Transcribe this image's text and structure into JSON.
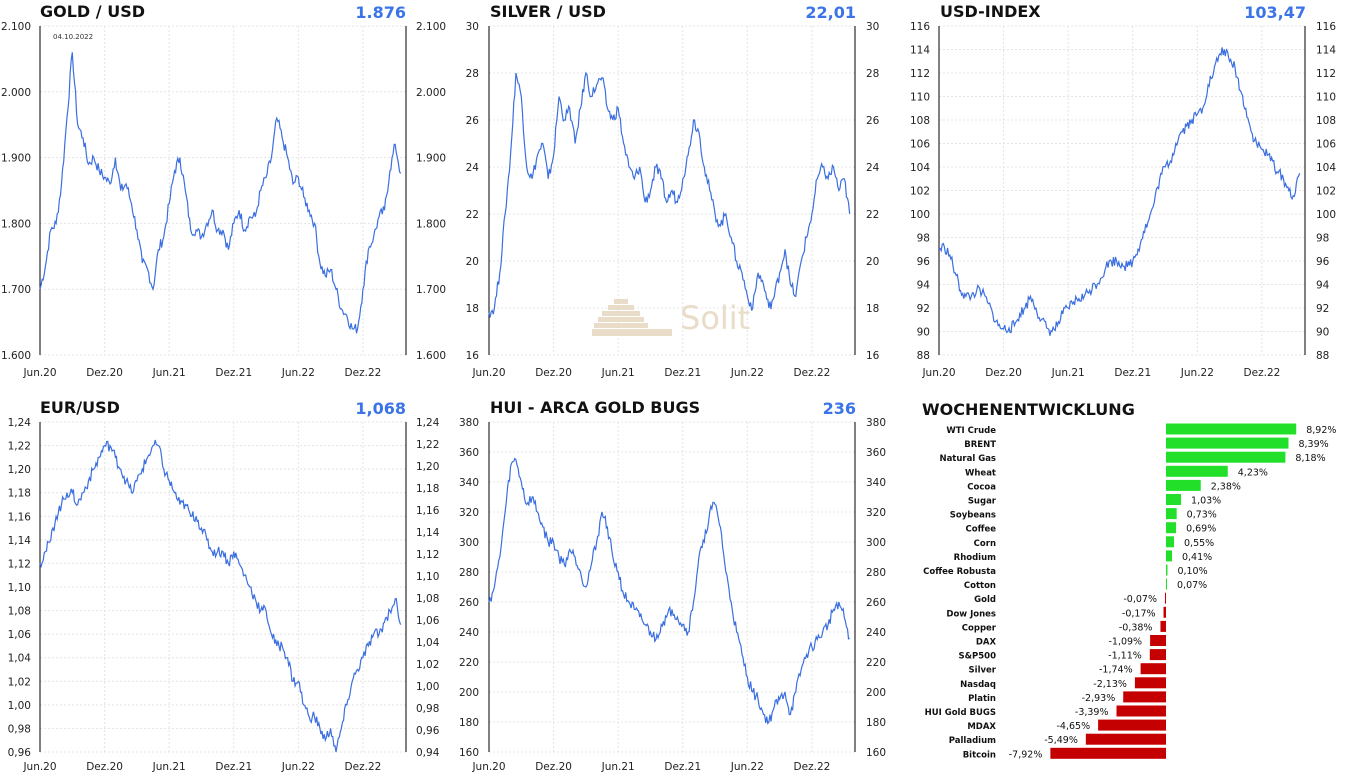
{
  "chart_data": [
    {
      "id": "gold",
      "type": "line",
      "title": "GOLD / USD",
      "current_value": "1.876",
      "annotation": "04.10.2022",
      "x_ticks": [
        "Jun.20",
        "Dez.20",
        "Jun.21",
        "Dez.21",
        "Jun.22",
        "Dez.22"
      ],
      "y_ticks": [
        "1.600",
        "1.700",
        "1.800",
        "1.900",
        "2.000",
        "2.100"
      ],
      "ylim": [
        1600,
        2100
      ],
      "line_color": "#3b6fe0",
      "x_unit": "months since Jun.20",
      "x": [
        0,
        0.5,
        1,
        1.5,
        2,
        2.5,
        3,
        3.5,
        4,
        4.5,
        5,
        5.5,
        6,
        6.5,
        7,
        7.5,
        8,
        8.5,
        9,
        9.5,
        10,
        10.5,
        11,
        11.5,
        12,
        12.5,
        13,
        13.5,
        14,
        14.5,
        15,
        15.5,
        16,
        16.5,
        17,
        17.5,
        18,
        18.5,
        19,
        19.5,
        20,
        20.5,
        21,
        21.5,
        22,
        22.5,
        23,
        23.5,
        24,
        24.5,
        25,
        25.5,
        26,
        26.5,
        27,
        27.5,
        28,
        28.5,
        29,
        29.5,
        30,
        30.5,
        31,
        31.5,
        32,
        32.5,
        33,
        33.5
      ],
      "y": [
        1700,
        1735,
        1790,
        1800,
        1860,
        1960,
        2060,
        1950,
        1930,
        1890,
        1900,
        1880,
        1870,
        1860,
        1900,
        1850,
        1860,
        1830,
        1790,
        1740,
        1730,
        1700,
        1760,
        1780,
        1830,
        1880,
        1900,
        1850,
        1790,
        1790,
        1780,
        1800,
        1820,
        1790,
        1790,
        1760,
        1800,
        1820,
        1790,
        1810,
        1810,
        1850,
        1870,
        1900,
        1960,
        1930,
        1900,
        1860,
        1870,
        1840,
        1820,
        1800,
        1740,
        1720,
        1730,
        1700,
        1670,
        1660,
        1640,
        1640,
        1700,
        1760,
        1780,
        1810,
        1820,
        1880,
        1920,
        1876
      ]
    },
    {
      "id": "silver",
      "type": "line",
      "title": "SILVER / USD",
      "current_value": "22,01",
      "x_ticks": [
        "Jun.20",
        "Dez.20",
        "Jun.21",
        "Dez.21",
        "Jun.22",
        "Dez.22"
      ],
      "y_ticks": [
        "16",
        "18",
        "20",
        "22",
        "24",
        "26",
        "28",
        "30"
      ],
      "ylim": [
        16,
        30
      ],
      "line_color": "#3b6fe0",
      "x_unit": "months since Jun.20",
      "x": [
        0,
        0.5,
        1,
        1.5,
        2,
        2.5,
        3,
        3.5,
        4,
        4.5,
        5,
        5.5,
        6,
        6.5,
        7,
        7.5,
        8,
        8.5,
        9,
        9.5,
        10,
        10.5,
        11,
        11.5,
        12,
        12.5,
        13,
        13.5,
        14,
        14.5,
        15,
        15.5,
        16,
        16.5,
        17,
        17.5,
        18,
        18.5,
        19,
        19.5,
        20,
        20.5,
        21,
        21.5,
        22,
        22.5,
        23,
        23.5,
        24,
        24.5,
        25,
        25.5,
        26,
        26.5,
        27,
        27.5,
        28,
        28.5,
        29,
        29.5,
        30,
        30.5,
        31,
        31.5,
        32,
        32.5,
        33,
        33.5
      ],
      "y": [
        17.8,
        18.0,
        19.5,
        22.0,
        24.5,
        28.0,
        27.0,
        24.0,
        23.5,
        24.5,
        25.0,
        23.5,
        24.5,
        27.0,
        26.0,
        26.5,
        25.0,
        26.5,
        28.0,
        27.0,
        27.5,
        27.8,
        26.5,
        26.0,
        26.5,
        25.0,
        24.0,
        23.5,
        24.0,
        22.5,
        23.0,
        24.0,
        23.5,
        22.5,
        23.0,
        22.5,
        23.5,
        24.5,
        26.0,
        25.5,
        24.0,
        23.0,
        22.0,
        21.5,
        22.0,
        21.0,
        20.0,
        19.5,
        18.5,
        18.0,
        19.5,
        19.0,
        18.0,
        18.5,
        19.5,
        20.5,
        19.0,
        18.5,
        20.0,
        21.0,
        22.0,
        23.5,
        24.0,
        23.5,
        24.0,
        23.0,
        23.5,
        22.01
      ]
    },
    {
      "id": "usd-index",
      "type": "line",
      "title": "USD-INDEX",
      "current_value": "103,47",
      "x_ticks": [
        "Jun.20",
        "Dez.20",
        "Jun.21",
        "Dez.21",
        "Jun.22",
        "Dez.22"
      ],
      "y_ticks": [
        "88",
        "90",
        "92",
        "94",
        "96",
        "98",
        "100",
        "102",
        "104",
        "106",
        "108",
        "110",
        "112",
        "114",
        "116"
      ],
      "ylim": [
        88,
        116
      ],
      "line_color": "#3b6fe0",
      "x_unit": "months since Jun.20",
      "x": [
        0,
        0.5,
        1,
        1.5,
        2,
        2.5,
        3,
        3.5,
        4,
        4.5,
        5,
        5.5,
        6,
        6.5,
        7,
        7.5,
        8,
        8.5,
        9,
        9.5,
        10,
        10.5,
        11,
        11.5,
        12,
        12.5,
        13,
        13.5,
        14,
        14.5,
        15,
        15.5,
        16,
        16.5,
        17,
        17.5,
        18,
        18.5,
        19,
        19.5,
        20,
        20.5,
        21,
        21.5,
        22,
        22.5,
        23,
        23.5,
        24,
        24.5,
        25,
        25.5,
        26,
        26.5,
        27,
        27.5,
        28,
        28.5,
        29,
        29.5,
        30,
        30.5,
        31,
        31.5,
        32,
        32.5,
        33,
        33.5
      ],
      "y": [
        97.0,
        97.2,
        96.5,
        95.0,
        93.5,
        93.0,
        93.0,
        93.5,
        93.3,
        92.5,
        91.5,
        90.5,
        90.2,
        90.3,
        90.5,
        91.5,
        92.0,
        93.0,
        92.0,
        91.0,
        90.3,
        90.0,
        90.5,
        91.5,
        92.0,
        92.5,
        92.8,
        93.0,
        93.5,
        94.0,
        94.5,
        95.5,
        96.0,
        96.0,
        95.8,
        95.5,
        96.0,
        97.0,
        98.5,
        99.5,
        101.0,
        103.0,
        104.0,
        104.5,
        106.0,
        107.0,
        107.5,
        108.0,
        108.5,
        109.0,
        111.0,
        112.0,
        113.5,
        114.0,
        113.0,
        112.5,
        110.5,
        109.0,
        107.0,
        106.0,
        105.5,
        105.0,
        104.5,
        103.5,
        103.0,
        102.0,
        101.5,
        103.47
      ]
    },
    {
      "id": "eurusd",
      "type": "line",
      "title": "EUR/USD",
      "current_value": "1,068",
      "x_ticks": [
        "Jun.20",
        "Dez.20",
        "Jun.21",
        "Dez.21",
        "Jun.22",
        "Dez.22"
      ],
      "y_ticks": [
        "0,96",
        "0,98",
        "1,00",
        "1,02",
        "1,04",
        "1,06",
        "1,08",
        "1,10",
        "1,12",
        "1,14",
        "1,16",
        "1,18",
        "1,20",
        "1,22",
        "1,24"
      ],
      "y_ticks_right": [
        "0,94",
        "0,96",
        "0,98",
        "1,00",
        "1,02",
        "1,04",
        "1,06",
        "1,08",
        "1,10",
        "1,12",
        "1,14",
        "1,16",
        "1,18",
        "1,20",
        "1,22",
        "1,24"
      ],
      "ylim": [
        0.96,
        1.24
      ],
      "ylim_right": [
        0.94,
        1.24
      ],
      "line_color": "#3b6fe0",
      "x_unit": "months since Jun.20",
      "x": [
        0,
        0.5,
        1,
        1.5,
        2,
        2.5,
        3,
        3.5,
        4,
        4.5,
        5,
        5.5,
        6,
        6.5,
        7,
        7.5,
        8,
        8.5,
        9,
        9.5,
        10,
        10.5,
        11,
        11.5,
        12,
        12.5,
        13,
        13.5,
        14,
        14.5,
        15,
        15.5,
        16,
        16.5,
        17,
        17.5,
        18,
        18.5,
        19,
        19.5,
        20,
        20.5,
        21,
        21.5,
        22,
        22.5,
        23,
        23.5,
        24,
        24.5,
        25,
        25.5,
        26,
        26.5,
        27,
        27.5,
        28,
        28.5,
        29,
        29.5,
        30,
        30.5,
        31,
        31.5,
        32,
        32.5,
        33,
        33.5
      ],
      "y": [
        1.12,
        1.13,
        1.14,
        1.16,
        1.17,
        1.18,
        1.18,
        1.17,
        1.18,
        1.19,
        1.2,
        1.21,
        1.22,
        1.22,
        1.21,
        1.2,
        1.19,
        1.18,
        1.19,
        1.2,
        1.21,
        1.22,
        1.22,
        1.2,
        1.19,
        1.18,
        1.17,
        1.17,
        1.16,
        1.16,
        1.15,
        1.14,
        1.13,
        1.13,
        1.13,
        1.12,
        1.13,
        1.12,
        1.11,
        1.1,
        1.09,
        1.08,
        1.08,
        1.06,
        1.05,
        1.05,
        1.04,
        1.02,
        1.02,
        1.0,
        0.99,
        0.99,
        0.98,
        0.97,
        0.98,
        0.96,
        0.98,
        1.0,
        1.02,
        1.03,
        1.04,
        1.05,
        1.06,
        1.06,
        1.07,
        1.08,
        1.09,
        1.068
      ]
    },
    {
      "id": "hui",
      "type": "line",
      "title": "HUI - ARCA GOLD BUGS",
      "current_value": "236",
      "x_ticks": [
        "Jun.20",
        "Dez.20",
        "Jun.21",
        "Dez.21",
        "Jun.22",
        "Dez.22"
      ],
      "y_ticks": [
        "160",
        "180",
        "200",
        "220",
        "240",
        "260",
        "280",
        "300",
        "320",
        "340",
        "360",
        "380"
      ],
      "ylim": [
        160,
        380
      ],
      "line_color": "#3b6fe0",
      "x_unit": "months since Jun.20",
      "x": [
        0,
        0.5,
        1,
        1.5,
        2,
        2.5,
        3,
        3.5,
        4,
        4.5,
        5,
        5.5,
        6,
        6.5,
        7,
        7.5,
        8,
        8.5,
        9,
        9.5,
        10,
        10.5,
        11,
        11.5,
        12,
        12.5,
        13,
        13.5,
        14,
        14.5,
        15,
        15.5,
        16,
        16.5,
        17,
        17.5,
        18,
        18.5,
        19,
        19.5,
        20,
        20.5,
        21,
        21.5,
        22,
        22.5,
        23,
        23.5,
        24,
        24.5,
        25,
        25.5,
        26,
        26.5,
        27,
        27.5,
        28,
        28.5,
        29,
        29.5,
        30,
        30.5,
        31,
        31.5,
        32,
        32.5,
        33,
        33.5
      ],
      "y": [
        260,
        270,
        290,
        320,
        350,
        355,
        340,
        325,
        330,
        320,
        310,
        300,
        300,
        290,
        285,
        295,
        290,
        280,
        270,
        285,
        300,
        320,
        310,
        290,
        280,
        265,
        260,
        255,
        250,
        245,
        240,
        235,
        245,
        250,
        255,
        250,
        245,
        240,
        260,
        290,
        300,
        320,
        325,
        310,
        280,
        260,
        240,
        225,
        210,
        200,
        195,
        185,
        180,
        190,
        195,
        200,
        185,
        200,
        215,
        225,
        230,
        235,
        240,
        245,
        255,
        260,
        250,
        236
      ]
    },
    {
      "id": "weekly",
      "type": "bar",
      "title": "WOCHENENTWICKLUNG",
      "orientation": "horizontal",
      "positive_color": "#22e02a",
      "negative_color": "#c40000",
      "categories": [
        "WTI Crude",
        "BRENT",
        "Natural Gas",
        "Wheat",
        "Cocoa",
        "Sugar",
        "Soybeans",
        "Coffee",
        "Corn",
        "Rhodium",
        "Coffee Robusta",
        "Cotton",
        "Gold",
        "Dow Jones",
        "Copper",
        "DAX",
        "S&P500",
        "Silver",
        "Nasdaq",
        "Platin",
        "HUI Gold BUGS",
        "MDAX",
        "Palladium",
        "Bitcoin"
      ],
      "values": [
        8.92,
        8.39,
        8.18,
        4.23,
        2.38,
        1.03,
        0.73,
        0.69,
        0.55,
        0.41,
        0.1,
        0.07,
        -0.07,
        -0.17,
        -0.38,
        -1.09,
        -1.11,
        -1.74,
        -2.13,
        -2.93,
        -3.39,
        -4.65,
        -5.49,
        -7.92
      ],
      "labels": [
        "8,92%",
        "8,39%",
        "8,18%",
        "4,23%",
        "2,38%",
        "1,03%",
        "0,73%",
        "0,69%",
        "0,55%",
        "0,41%",
        "0,10%",
        "0,07%",
        "-0,07%",
        "-0,17%",
        "-0,38%",
        "-1,09%",
        "-1,11%",
        "-1,74%",
        "-2,13%",
        "-2,93%",
        "-3,39%",
        "-4,65%",
        "-5,49%",
        "-7,92%"
      ]
    }
  ],
  "watermark": {
    "text": "Solit"
  }
}
